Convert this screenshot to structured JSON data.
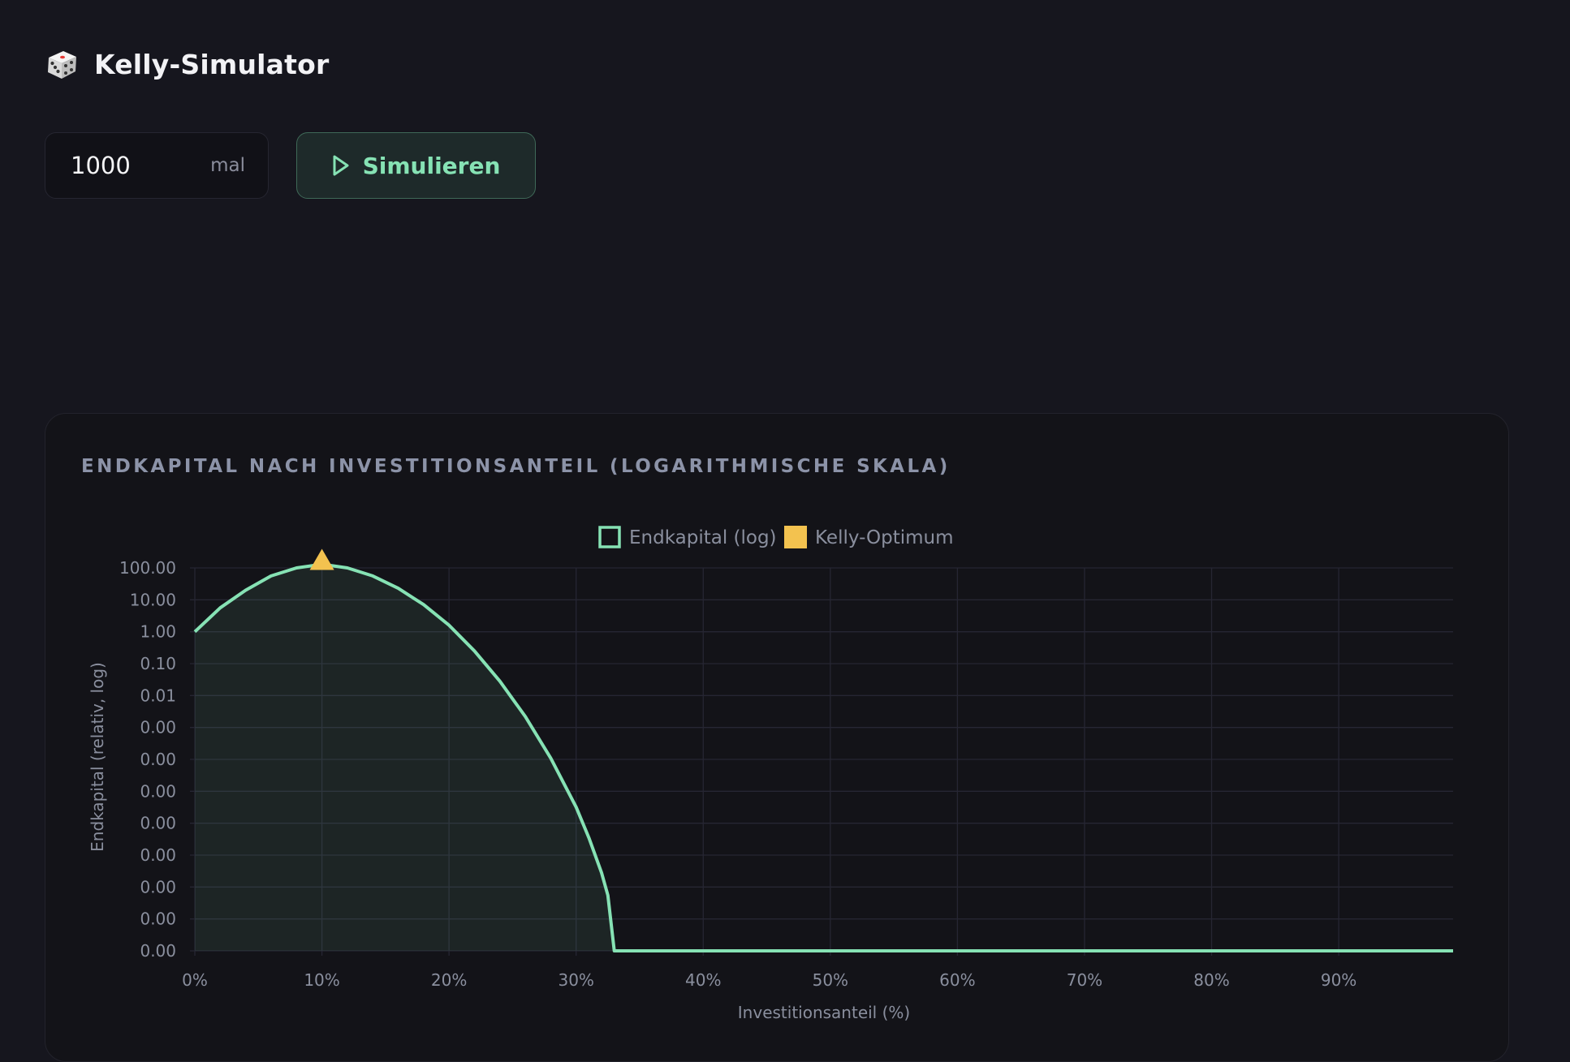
{
  "app": {
    "title": "Kelly-Simulator",
    "logo_icon": "die-icon"
  },
  "controls": {
    "count_value": "1000",
    "count_unit": "mal",
    "simulate_label": "Simulieren",
    "simulate_icon": "play-icon"
  },
  "colors": {
    "background": "#16161e",
    "accent": "#86e2b4",
    "optimum": "#f3c24f",
    "muted_text": "#8a8f9e"
  },
  "chart_data": {
    "type": "line",
    "title": "ENDKAPITAL NACH INVESTITIONSANTEIL (LOGARITHMISCHE SKALA)",
    "xlabel": "Investitionsanteil (%)",
    "ylabel": "Endkapital (relativ, log)",
    "y_scale": "log",
    "area_fill": true,
    "grid": true,
    "legend_position": "top-center",
    "x_tick_labels": [
      "0%",
      "10%",
      "20%",
      "30%",
      "40%",
      "50%",
      "60%",
      "70%",
      "80%",
      "90%"
    ],
    "y_tick_labels": [
      "100.00",
      "10.00",
      "1.00",
      "0.10",
      "0.01",
      "0.00",
      "0.00",
      "0.00",
      "0.00",
      "0.00",
      "0.00",
      "0.00",
      "0.00"
    ],
    "y_tick_values": [
      100,
      10,
      1,
      0.1,
      0.01,
      0.001,
      0.0001,
      1e-05,
      1e-06,
      1e-07,
      1e-08,
      1e-09,
      1e-10
    ],
    "xlim": [
      0,
      99
    ],
    "ylim": [
      1e-10,
      100
    ],
    "series": [
      {
        "name": "Endkapital (log)",
        "color": "#86e2b4",
        "x": [
          0,
          2,
          4,
          6,
          8,
          10,
          12,
          14,
          16,
          18,
          20,
          22,
          24,
          26,
          28,
          30,
          31,
          32,
          32.5,
          33,
          40,
          50,
          60,
          70,
          80,
          90,
          99
        ],
        "y": [
          1,
          5.6,
          20,
          56,
          100,
          130,
          100,
          56,
          23,
          7.1,
          1.6,
          0.25,
          0.028,
          0.0022,
          0.00011,
          3.2e-06,
          3.5e-07,
          2.8e-08,
          5.5e-09,
          1e-10,
          1e-10,
          1e-10,
          1e-10,
          1e-10,
          1e-10,
          1e-10,
          1e-10
        ]
      },
      {
        "name": "Kelly-Optimum",
        "color": "#f3c24f",
        "marker": "triangle",
        "x": [
          10
        ],
        "y": [
          130
        ]
      }
    ]
  }
}
